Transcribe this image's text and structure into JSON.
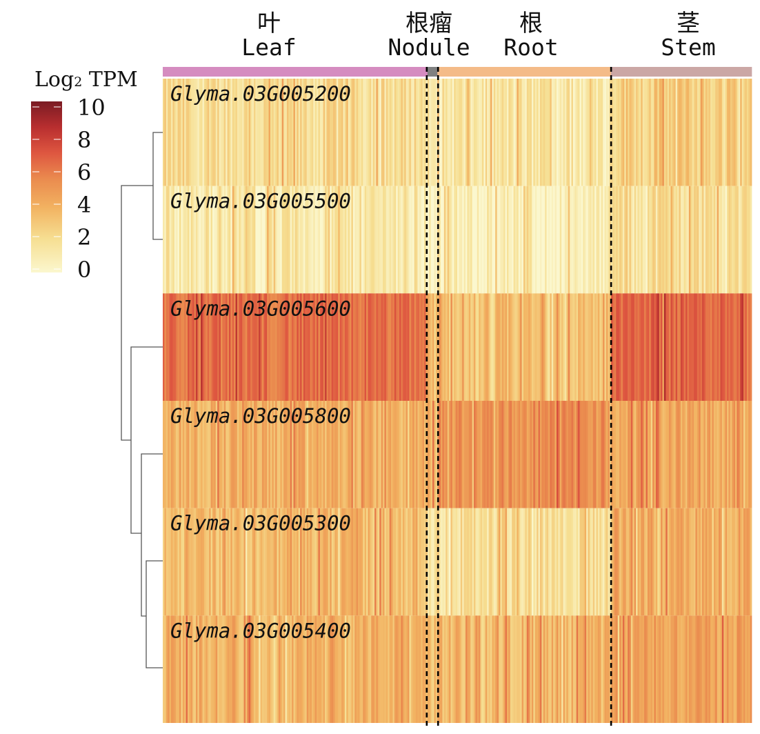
{
  "chart_data": {
    "type": "heatmap",
    "legend": {
      "title_main": "Log",
      "title_sub": "2",
      "title_rest": " TPM",
      "ticks": [
        "10",
        "8",
        "6",
        "4",
        "2",
        "0"
      ],
      "range": [
        0,
        10
      ]
    },
    "colorscale": [
      "#FBF7CE",
      "#F6DE91",
      "#F2B261",
      "#EA8A4E",
      "#DE5640",
      "#B82E2F",
      "#7A1B23"
    ],
    "tissues": [
      {
        "zh": "叶",
        "en": "Leaf",
        "color": "#D58CC0",
        "samples": 160
      },
      {
        "zh": "根瘤",
        "en": "Nodule",
        "color": "#808080",
        "samples": 6
      },
      {
        "zh": "根",
        "en": "Root",
        "color": "#F4BB88",
        "samples": 105
      },
      {
        "zh": "茎",
        "en": "Stem",
        "color": "#CBA7A5",
        "samples": 85
      }
    ],
    "genes": [
      {
        "name": "Glyma.03G005200",
        "mean": {
          "Leaf": 1.6,
          "Nodule": 1.4,
          "Root": 1.1,
          "Stem": 2.3
        }
      },
      {
        "name": "Glyma.03G005500",
        "mean": {
          "Leaf": 1.0,
          "Nodule": 0.4,
          "Root": 0.4,
          "Stem": 1.6
        }
      },
      {
        "name": "Glyma.03G005600",
        "mean": {
          "Leaf": 5.8,
          "Nodule": 2.8,
          "Root": 2.8,
          "Stem": 6.2
        }
      },
      {
        "name": "Glyma.03G005800",
        "mean": {
          "Leaf": 3.4,
          "Nodule": 3.6,
          "Root": 4.6,
          "Stem": 3.8
        }
      },
      {
        "name": "Glyma.03G005300",
        "mean": {
          "Leaf": 3.0,
          "Nodule": 1.6,
          "Root": 1.6,
          "Stem": 3.6
        }
      },
      {
        "name": "Glyma.03G005400",
        "mean": {
          "Leaf": 3.4,
          "Nodule": 3.0,
          "Root": 3.1,
          "Stem": 4.0
        }
      }
    ]
  }
}
